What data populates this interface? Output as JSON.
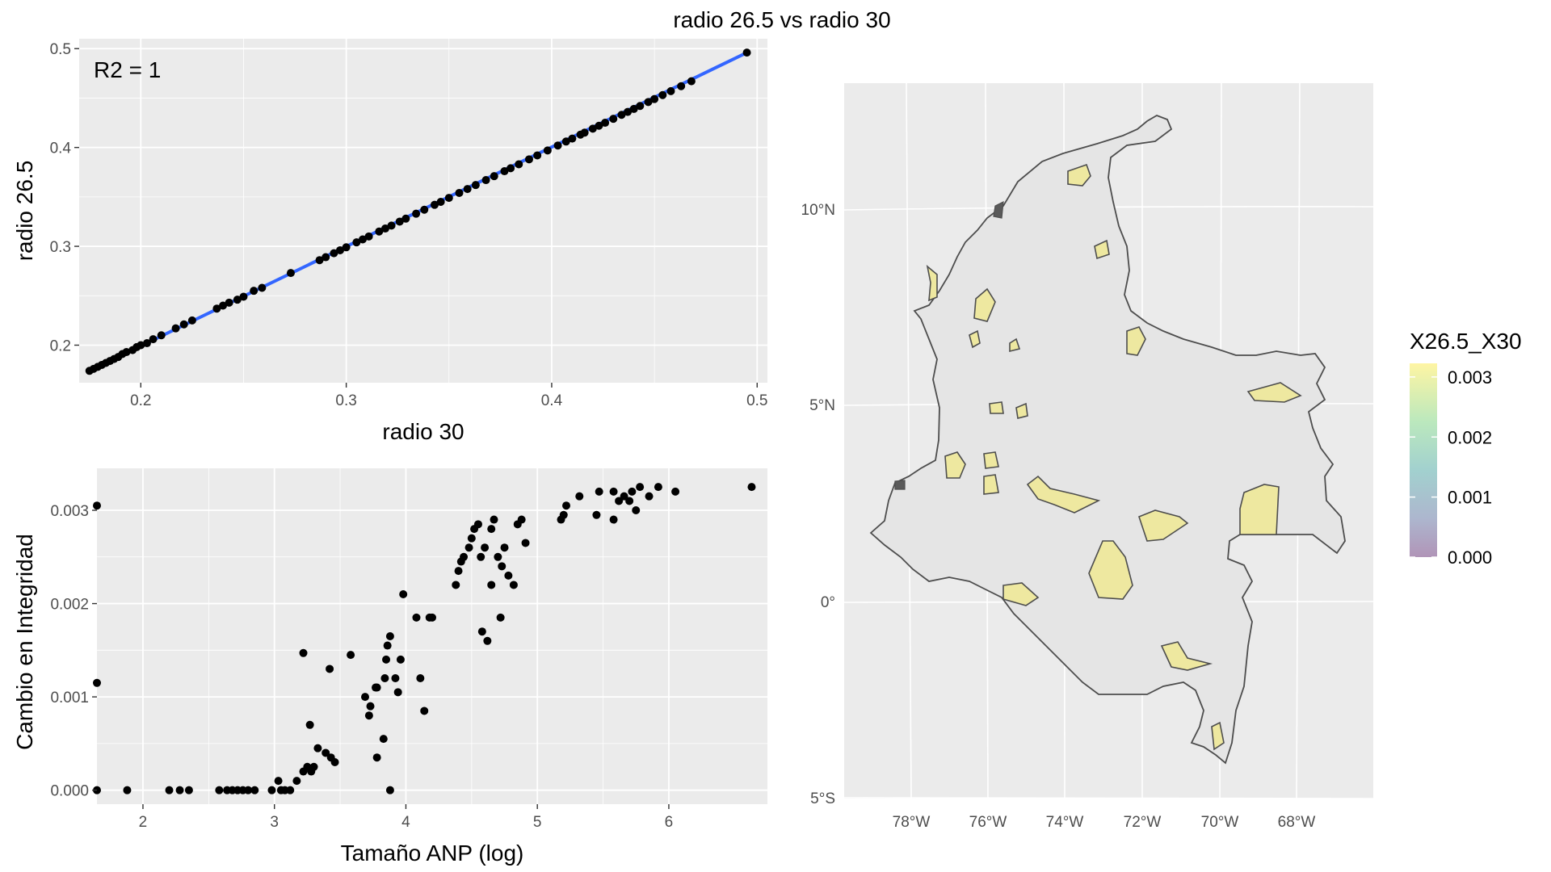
{
  "figure": {
    "title": "radio 26.5 vs radio 30"
  },
  "chart_data": [
    {
      "type": "scatter",
      "id": "top",
      "annotation": "R2 = 1",
      "xlabel": "radio 30",
      "ylabel": "radio 26.5",
      "xlim": [
        0.17,
        0.505
      ],
      "ylim": [
        0.162,
        0.51
      ],
      "xticks": [
        0.2,
        0.3,
        0.4,
        0.5
      ],
      "xtick_labels": [
        "0.2",
        "0.3",
        "0.4",
        "0.5"
      ],
      "yticks": [
        0.2,
        0.3,
        0.4,
        0.5
      ],
      "ytick_labels": [
        "0.2",
        "0.3",
        "0.4",
        "0.5"
      ],
      "grid": true,
      "point_color": "#000000",
      "fit_color": "#3366ff",
      "fit_line": {
        "x": [
          0.175,
          0.495
        ],
        "y": [
          0.174,
          0.496
        ]
      },
      "x": [
        0.175,
        0.177,
        0.179,
        0.181,
        0.183,
        0.185,
        0.187,
        0.189,
        0.191,
        0.193,
        0.196,
        0.198,
        0.2,
        0.203,
        0.206,
        0.21,
        0.217,
        0.221,
        0.225,
        0.237,
        0.24,
        0.243,
        0.247,
        0.25,
        0.255,
        0.259,
        0.273,
        0.287,
        0.29,
        0.294,
        0.297,
        0.3,
        0.305,
        0.308,
        0.311,
        0.316,
        0.319,
        0.322,
        0.326,
        0.329,
        0.334,
        0.338,
        0.343,
        0.346,
        0.35,
        0.355,
        0.359,
        0.363,
        0.368,
        0.372,
        0.377,
        0.38,
        0.384,
        0.389,
        0.393,
        0.398,
        0.403,
        0.407,
        0.41,
        0.414,
        0.416,
        0.42,
        0.423,
        0.426,
        0.43,
        0.434,
        0.437,
        0.44,
        0.443,
        0.447,
        0.45,
        0.454,
        0.458,
        0.463,
        0.468,
        0.495
      ],
      "y": [
        0.174,
        0.176,
        0.178,
        0.18,
        0.182,
        0.184,
        0.186,
        0.188,
        0.191,
        0.193,
        0.195,
        0.198,
        0.2,
        0.202,
        0.206,
        0.21,
        0.217,
        0.221,
        0.225,
        0.237,
        0.24,
        0.243,
        0.246,
        0.249,
        0.255,
        0.258,
        0.273,
        0.286,
        0.289,
        0.293,
        0.296,
        0.299,
        0.304,
        0.307,
        0.31,
        0.315,
        0.318,
        0.321,
        0.325,
        0.328,
        0.333,
        0.337,
        0.342,
        0.345,
        0.349,
        0.354,
        0.358,
        0.362,
        0.367,
        0.371,
        0.376,
        0.379,
        0.383,
        0.388,
        0.392,
        0.397,
        0.402,
        0.406,
        0.409,
        0.413,
        0.415,
        0.419,
        0.422,
        0.425,
        0.429,
        0.433,
        0.436,
        0.439,
        0.442,
        0.446,
        0.449,
        0.453,
        0.457,
        0.462,
        0.467,
        0.496
      ]
    },
    {
      "type": "scatter",
      "id": "bottom",
      "xlabel": "Tamaño ANP (log)",
      "ylabel": "Cambio en Integridad",
      "xlim": [
        1.65,
        6.75
      ],
      "ylim": [
        -0.00015,
        0.00345
      ],
      "xticks": [
        2,
        3,
        4,
        5,
        6
      ],
      "xtick_labels": [
        "2",
        "3",
        "4",
        "5",
        "6"
      ],
      "yticks": [
        0.0,
        0.001,
        0.002,
        0.003
      ],
      "ytick_labels": [
        "0.000",
        "0.001",
        "0.002",
        "0.003"
      ],
      "grid": true,
      "point_color": "#000000",
      "x": [
        1.65,
        1.65,
        1.65,
        1.88,
        2.2,
        2.28,
        2.35,
        2.58,
        2.64,
        2.68,
        2.72,
        2.76,
        2.8,
        2.85,
        2.98,
        3.03,
        3.05,
        3.08,
        3.12,
        3.17,
        3.22,
        3.25,
        3.27,
        3.28,
        3.3,
        3.33,
        3.39,
        3.43,
        3.46,
        3.42,
        3.22,
        3.58,
        3.69,
        3.72,
        3.73,
        3.77,
        3.78,
        3.83,
        3.84,
        3.85,
        3.86,
        3.88,
        3.92,
        3.94,
        3.96,
        3.98,
        3.88,
        3.78,
        4.08,
        4.11,
        4.14,
        4.18,
        4.2,
        4.38,
        4.4,
        4.42,
        4.44,
        4.48,
        4.5,
        4.52,
        4.55,
        4.57,
        4.6,
        4.62,
        4.65,
        4.67,
        4.7,
        4.73,
        4.75,
        4.78,
        4.82,
        4.85,
        4.88,
        4.91,
        4.65,
        4.58,
        4.72,
        5.18,
        5.22,
        5.32,
        5.47,
        5.58,
        5.62,
        5.66,
        5.7,
        5.72,
        5.78,
        5.85,
        5.92,
        6.05,
        6.63,
        5.2,
        5.45,
        5.58,
        5.75
      ],
      "y": [
        0.00305,
        0.00115,
        0.0,
        0.0,
        0.0,
        0.0,
        0.0,
        0.0,
        0.0,
        0.0,
        0.0,
        0.0,
        0.0,
        0.0,
        0.0,
        0.0001,
        0.0,
        0.0,
        0.0,
        0.0001,
        0.0002,
        0.00025,
        0.0007,
        0.0002,
        0.00025,
        0.00045,
        0.0004,
        0.00035,
        0.0003,
        0.0013,
        0.00147,
        0.00145,
        0.001,
        0.0008,
        0.0009,
        0.0011,
        0.00035,
        0.00055,
        0.0012,
        0.0014,
        0.00155,
        0.00165,
        0.0012,
        0.00105,
        0.0014,
        0.0021,
        0.0,
        0.0011,
        0.00185,
        0.0012,
        0.00085,
        0.00185,
        0.00185,
        0.0022,
        0.00235,
        0.00245,
        0.0025,
        0.0026,
        0.0027,
        0.0028,
        0.00285,
        0.0025,
        0.0026,
        0.0016,
        0.0022,
        0.0029,
        0.0025,
        0.0024,
        0.0026,
        0.0023,
        0.0022,
        0.00285,
        0.0029,
        0.00265,
        0.0028,
        0.0017,
        0.00185,
        0.0029,
        0.00305,
        0.00315,
        0.0032,
        0.0032,
        0.0031,
        0.00315,
        0.0031,
        0.0032,
        0.00325,
        0.00315,
        0.00325,
        0.0032,
        0.00325,
        0.00295,
        0.00295,
        0.0029,
        0.003
      ]
    },
    {
      "type": "map",
      "id": "map",
      "legend_title": "X26.5_X30",
      "legend_labels": [
        "0.003",
        "0.002",
        "0.001",
        "0.000"
      ],
      "legend_values": [
        0.003,
        0.002,
        0.001,
        0.0
      ],
      "legend_colors": [
        "#fde725",
        "#5ec962",
        "#21918c",
        "#3b528b",
        "#440154"
      ],
      "lon_labels": [
        "78°W",
        "76°W",
        "74°W",
        "72°W",
        "70°W",
        "68°W"
      ],
      "lat_labels": [
        "10°N",
        "5°N",
        "0°",
        "5°S"
      ],
      "country_fill": "#e5e5e5",
      "protected_area_fill": "#eee8a0",
      "low_value_fill": "#5a5a5a"
    }
  ]
}
